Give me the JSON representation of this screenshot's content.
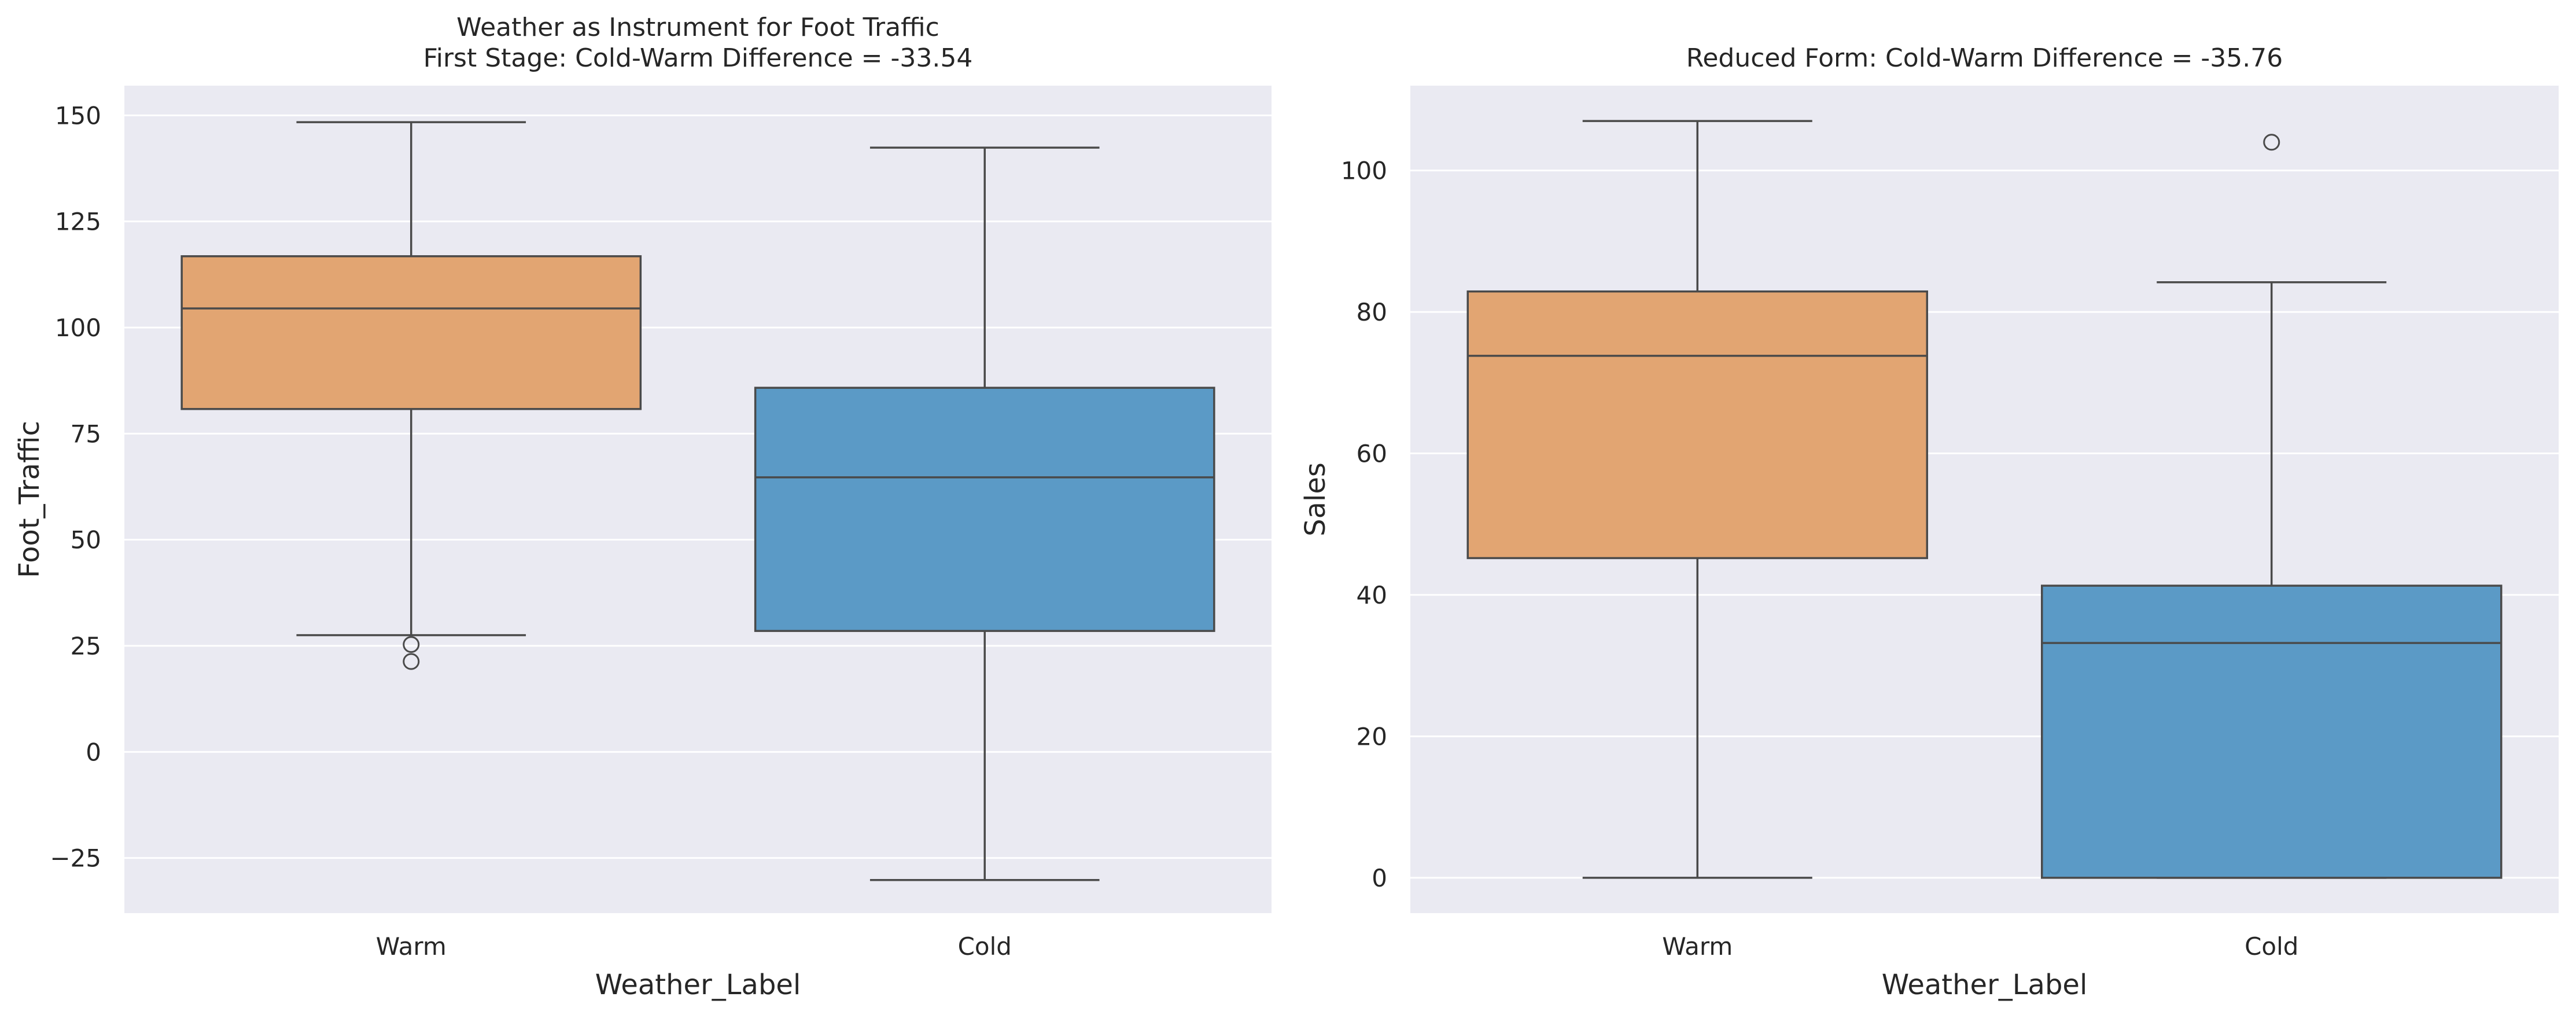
{
  "chart_data": [
    {
      "type": "box",
      "title_line1": "Weather as Instrument for Foot Traffic",
      "title_line2": "First Stage: Cold-Warm Difference = -33.54",
      "xlabel": "Weather_Label",
      "ylabel": "Foot_Traffic",
      "ylim": [
        -38,
        157
      ],
      "yticks": [
        -25,
        0,
        25,
        50,
        75,
        100,
        125,
        150
      ],
      "grid": true,
      "categories": [
        "Warm",
        "Cold"
      ],
      "boxes": [
        {
          "category": "Warm",
          "color": "#e2a572",
          "whisker_low": 27.5,
          "q1": 80.8,
          "median": 104.5,
          "q3": 116.8,
          "whisker_high": 148.4,
          "outliers": [
            25.3,
            21.3
          ]
        },
        {
          "category": "Cold",
          "color": "#5b9ac6",
          "whisker_low": -30.2,
          "q1": 28.5,
          "median": 64.7,
          "q3": 85.8,
          "whisker_high": 142.4,
          "outliers": []
        }
      ]
    },
    {
      "type": "box",
      "title_line1": "Reduced Form: Cold-Warm Difference = -35.76",
      "title_line2": "",
      "xlabel": "Weather_Label",
      "ylabel": "Sales",
      "ylim": [
        -5,
        112
      ],
      "yticks": [
        0,
        20,
        40,
        60,
        80,
        100
      ],
      "grid": true,
      "categories": [
        "Warm",
        "Cold"
      ],
      "boxes": [
        {
          "category": "Warm",
          "color": "#e2a572",
          "whisker_low": 0,
          "q1": 45.2,
          "median": 73.8,
          "q3": 82.9,
          "whisker_high": 107.0,
          "outliers": []
        },
        {
          "category": "Cold",
          "color": "#5b9ac6",
          "whisker_low": 0,
          "q1": 0,
          "median": 33.2,
          "q3": 41.3,
          "whisker_high": 84.2,
          "outliers": [
            104.0
          ]
        }
      ]
    }
  ]
}
